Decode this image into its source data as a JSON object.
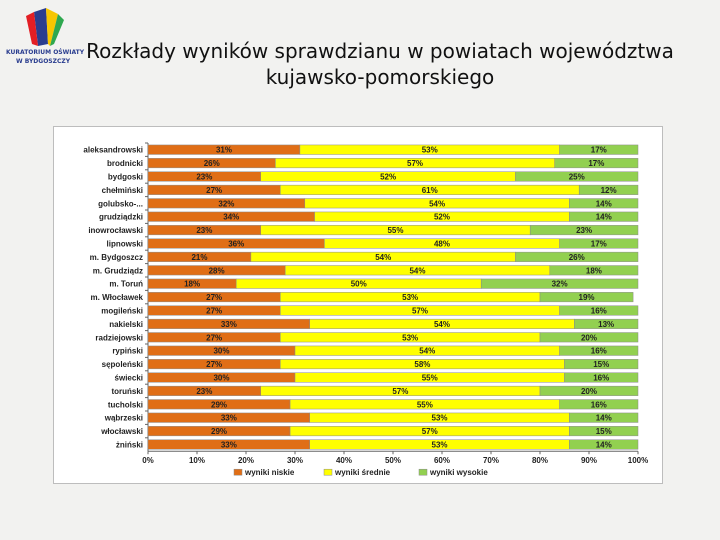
{
  "title_line1": "Rozkłady wyników sprawdzianu w powiatach województwa",
  "title_line2": "kujawsko-pomorskiego",
  "logo": {
    "text_line1": "KURATORIUM OŚWIATY",
    "text_line2": "W BYDGOSZCZY",
    "colors": [
      "#2a3d8f",
      "#e31e24",
      "#f7c600",
      "#2fa84f"
    ]
  },
  "chart_data": {
    "type": "bar",
    "orientation": "horizontal",
    "stacked": "percent",
    "categories": [
      "aleksandrowski",
      "brodnicki",
      "bydgoski",
      "chełmiński",
      "golubsko-...",
      "grudziądzki",
      "inowrocławski",
      "lipnowski",
      "m. Bydgoszcz",
      "m. Grudziądz",
      "m. Toruń",
      "m. Włocławek",
      "mogileński",
      "nakielski",
      "radziejowski",
      "rypiński",
      "sępoleński",
      "świecki",
      "toruński",
      "tucholski",
      "wąbrzeski",
      "włocławski",
      "żniński"
    ],
    "series": [
      {
        "name": "wyniki niskie",
        "color": "#e06e16",
        "values": [
          31,
          26,
          23,
          27,
          32,
          34,
          23,
          36,
          21,
          28,
          18,
          27,
          27,
          33,
          27,
          30,
          27,
          30,
          23,
          29,
          33,
          29,
          33
        ]
      },
      {
        "name": "wyniki średnie",
        "color": "#ffff00",
        "values": [
          53,
          57,
          52,
          61,
          54,
          52,
          55,
          48,
          54,
          54,
          50,
          53,
          57,
          54,
          53,
          54,
          58,
          55,
          57,
          55,
          53,
          57,
          53
        ]
      },
      {
        "name": "wyniki wysokie",
        "color": "#92d050",
        "values": [
          17,
          17,
          25,
          12,
          14,
          14,
          23,
          17,
          26,
          18,
          32,
          19,
          16,
          13,
          20,
          16,
          15,
          16,
          20,
          16,
          14,
          15,
          14
        ]
      }
    ],
    "labels": [
      [
        "31%",
        "53%",
        "17%"
      ],
      [
        "26%",
        "57%",
        "17%"
      ],
      [
        "23%",
        "52%",
        "25%"
      ],
      [
        "27%",
        "61%",
        "12%"
      ],
      [
        "32%",
        "54%",
        "14%"
      ],
      [
        "34%",
        "52%",
        "14%"
      ],
      [
        "23%",
        "55%",
        "23%"
      ],
      [
        "36%",
        "48%",
        "17%"
      ],
      [
        "21%",
        "54%",
        "26%"
      ],
      [
        "28%",
        "54%",
        "18%"
      ],
      [
        "18%",
        "50%",
        "32%"
      ],
      [
        "27%",
        "53%",
        "19%"
      ],
      [
        "27%",
        "57%",
        "16%"
      ],
      [
        "33%",
        "54%",
        "13%"
      ],
      [
        "27%",
        "53%",
        "20%"
      ],
      [
        "30%",
        "54%",
        "16%"
      ],
      [
        "27%",
        "58%",
        "15%"
      ],
      [
        "30%",
        "55%",
        "16%"
      ],
      [
        "23%",
        "57%",
        "20%"
      ],
      [
        "29%",
        "55%",
        "16%"
      ],
      [
        "33%",
        "53%",
        "14%"
      ],
      [
        "29%",
        "57%",
        "15%"
      ],
      [
        "33%",
        "53%",
        "14%"
      ]
    ],
    "x_ticks": [
      "0%",
      "10%",
      "20%",
      "30%",
      "40%",
      "50%",
      "60%",
      "70%",
      "80%",
      "90%",
      "100%"
    ],
    "xlim": [
      0,
      100
    ],
    "legend_position": "bottom",
    "grid": false
  }
}
